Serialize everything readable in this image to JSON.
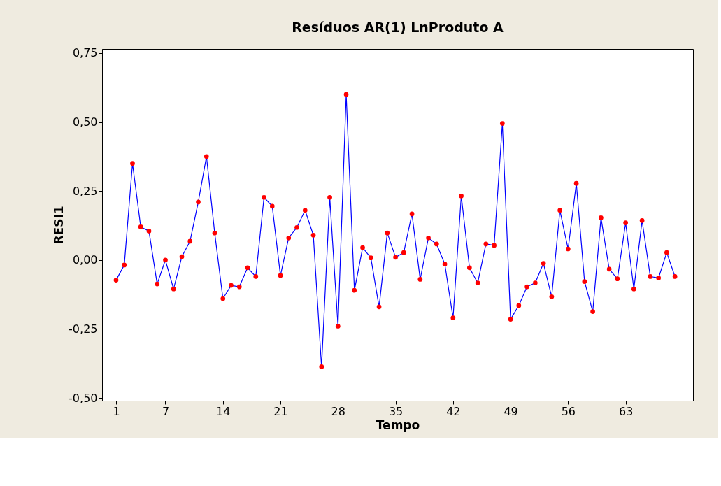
{
  "chart_data": {
    "type": "line",
    "title": "Resíduos AR(1) LnProduto A",
    "xlabel": "Tempo",
    "ylabel": "RESI1",
    "x": [
      1,
      2,
      3,
      4,
      5,
      6,
      7,
      8,
      9,
      10,
      11,
      12,
      13,
      14,
      15,
      16,
      17,
      18,
      19,
      20,
      21,
      22,
      23,
      24,
      25,
      26,
      27,
      28,
      29,
      30,
      31,
      32,
      33,
      34,
      35,
      36,
      37,
      38,
      39,
      40,
      41,
      42,
      43,
      44,
      45,
      46,
      47,
      48,
      49,
      50,
      51,
      52,
      53,
      54,
      55,
      56,
      57,
      58,
      59,
      60,
      61,
      62,
      63,
      64,
      65,
      66,
      67,
      68,
      69
    ],
    "series": [
      {
        "color": "#0000ff",
        "values": [
          -0.073,
          -0.018,
          0.35,
          0.12,
          0.105,
          -0.087,
          0.0,
          -0.105,
          0.012,
          0.068,
          0.21,
          0.375,
          0.098,
          -0.14,
          -0.092,
          -0.097,
          -0.028,
          -0.06,
          0.227,
          0.195,
          -0.056,
          0.08,
          0.118,
          0.18,
          0.09,
          -0.387,
          0.227,
          -0.24,
          0.6,
          -0.11,
          0.045,
          0.008,
          -0.17,
          0.098,
          0.01,
          0.027,
          0.167,
          -0.07,
          0.08,
          0.058,
          -0.015,
          -0.21,
          0.232,
          -0.028,
          -0.083,
          0.058,
          0.053,
          0.495,
          -0.215,
          -0.165,
          -0.097,
          -0.083,
          -0.012,
          -0.133,
          0.18,
          0.04,
          0.278,
          -0.078,
          -0.187,
          0.153,
          -0.033,
          -0.068,
          0.135,
          -0.105,
          0.143,
          -0.06,
          -0.065,
          0.027,
          -0.06
        ]
      }
    ],
    "xlim": [
      -0.7,
      71.2
    ],
    "xticks": [
      1,
      7,
      14,
      21,
      28,
      35,
      42,
      49,
      56,
      63
    ],
    "ylim": [
      -0.51,
      0.765
    ],
    "yticks": [
      {
        "value": -0.5,
        "label": "-0,50"
      },
      {
        "value": -0.25,
        "label": "-0,25"
      },
      {
        "value": 0,
        "label": "0,00"
      },
      {
        "value": 0.25,
        "label": "0,25"
      },
      {
        "value": 0.5,
        "label": "0,50"
      },
      {
        "value": 0.75,
        "label": "0,75"
      }
    ],
    "marker": "circle",
    "line_style": "solid",
    "grid": false
  }
}
